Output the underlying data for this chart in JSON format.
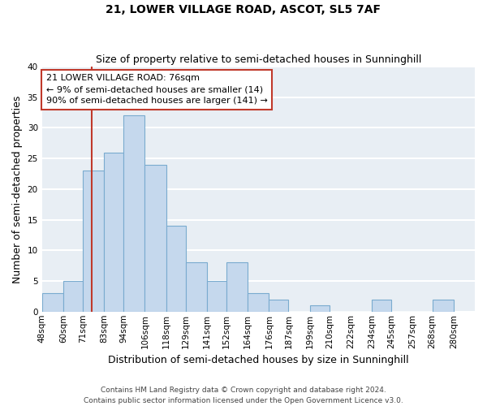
{
  "title": "21, LOWER VILLAGE ROAD, ASCOT, SL5 7AF",
  "subtitle": "Size of property relative to semi-detached houses in Sunninghill",
  "xlabel": "Distribution of semi-detached houses by size in Sunninghill",
  "ylabel": "Number of semi-detached properties",
  "footer1": "Contains HM Land Registry data © Crown copyright and database right 2024.",
  "footer2": "Contains public sector information licensed under the Open Government Licence v3.0.",
  "bin_labels": [
    "48sqm",
    "60sqm",
    "71sqm",
    "83sqm",
    "94sqm",
    "106sqm",
    "118sqm",
    "129sqm",
    "141sqm",
    "152sqm",
    "164sqm",
    "176sqm",
    "187sqm",
    "199sqm",
    "210sqm",
    "222sqm",
    "234sqm",
    "245sqm",
    "257sqm",
    "268sqm",
    "280sqm"
  ],
  "bin_edges": [
    48,
    60,
    71,
    83,
    94,
    106,
    118,
    129,
    141,
    152,
    164,
    176,
    187,
    199,
    210,
    222,
    234,
    245,
    257,
    268,
    280
  ],
  "counts": [
    3,
    5,
    23,
    26,
    32,
    24,
    14,
    8,
    5,
    8,
    3,
    2,
    0,
    1,
    0,
    0,
    2,
    0,
    0,
    2
  ],
  "bar_color": "#c5d8ed",
  "bar_edge_color": "#7aabcf",
  "property_value": 76,
  "vline_color": "#c0392b",
  "annotation_line1": "21 LOWER VILLAGE ROAD: 76sqm",
  "annotation_line2": "← 9% of semi-detached houses are smaller (14)",
  "annotation_line3": "90% of semi-detached houses are larger (141) →",
  "annotation_box_color": "white",
  "annotation_box_edge": "#c0392b",
  "ylim": [
    0,
    40
  ],
  "yticks": [
    0,
    5,
    10,
    15,
    20,
    25,
    30,
    35,
    40
  ],
  "fig_bg_color": "#ffffff",
  "ax_bg_color": "#e8eef4",
  "grid_color": "#ffffff",
  "title_fontsize": 10,
  "subtitle_fontsize": 9,
  "axis_label_fontsize": 9,
  "tick_fontsize": 7.5,
  "annotation_fontsize": 8,
  "footer_fontsize": 6.5
}
